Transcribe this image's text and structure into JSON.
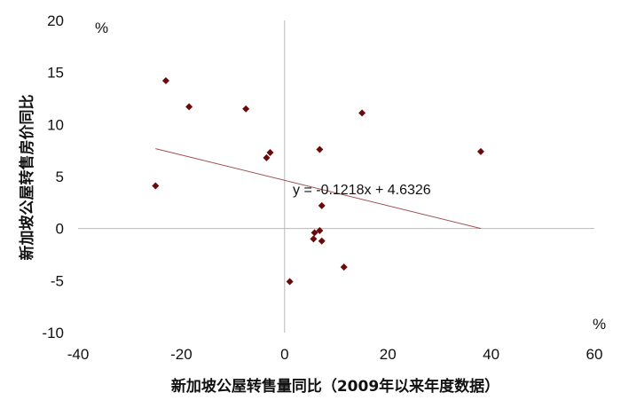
{
  "chart_data": {
    "type": "scatter",
    "xlabel": "新加坡公屋转售量同比（2009年以来年度数据）",
    "ylabel": "新加坡公屋转售房价同比",
    "x_unit": "%",
    "y_unit": "%",
    "xlim": [
      -40,
      60
    ],
    "ylim": [
      -10,
      20
    ],
    "x_ticks": [
      "-40",
      "-20",
      "0",
      "20",
      "40",
      "60"
    ],
    "y_ticks": [
      "20",
      "15",
      "10",
      "5",
      "0",
      "-5",
      "-10"
    ],
    "grid": false,
    "points": [
      {
        "x": -23,
        "y": 14.2
      },
      {
        "x": -18.5,
        "y": 11.7
      },
      {
        "x": -7.5,
        "y": 11.5
      },
      {
        "x": -25,
        "y": 4.1
      },
      {
        "x": -3.5,
        "y": 6.8
      },
      {
        "x": -2.8,
        "y": 7.3
      },
      {
        "x": 6.8,
        "y": 7.6
      },
      {
        "x": 15,
        "y": 11.1
      },
      {
        "x": 38,
        "y": 7.4
      },
      {
        "x": 7.2,
        "y": 2.2
      },
      {
        "x": 5.8,
        "y": -0.4
      },
      {
        "x": 6.8,
        "y": -0.2
      },
      {
        "x": 5.6,
        "y": -1.0
      },
      {
        "x": 7.2,
        "y": -1.2
      },
      {
        "x": 11.5,
        "y": -3.7
      },
      {
        "x": 1.0,
        "y": -5.1
      }
    ],
    "trendline": {
      "slope": -0.1218,
      "intercept": 4.6326,
      "x_range": [
        -25,
        38
      ],
      "equation": "y = -0.1218x + 4.6326"
    },
    "colors": {
      "marker": "#6b0a0a",
      "trendline": "#a05050",
      "axis": "#b8b8b8"
    }
  }
}
